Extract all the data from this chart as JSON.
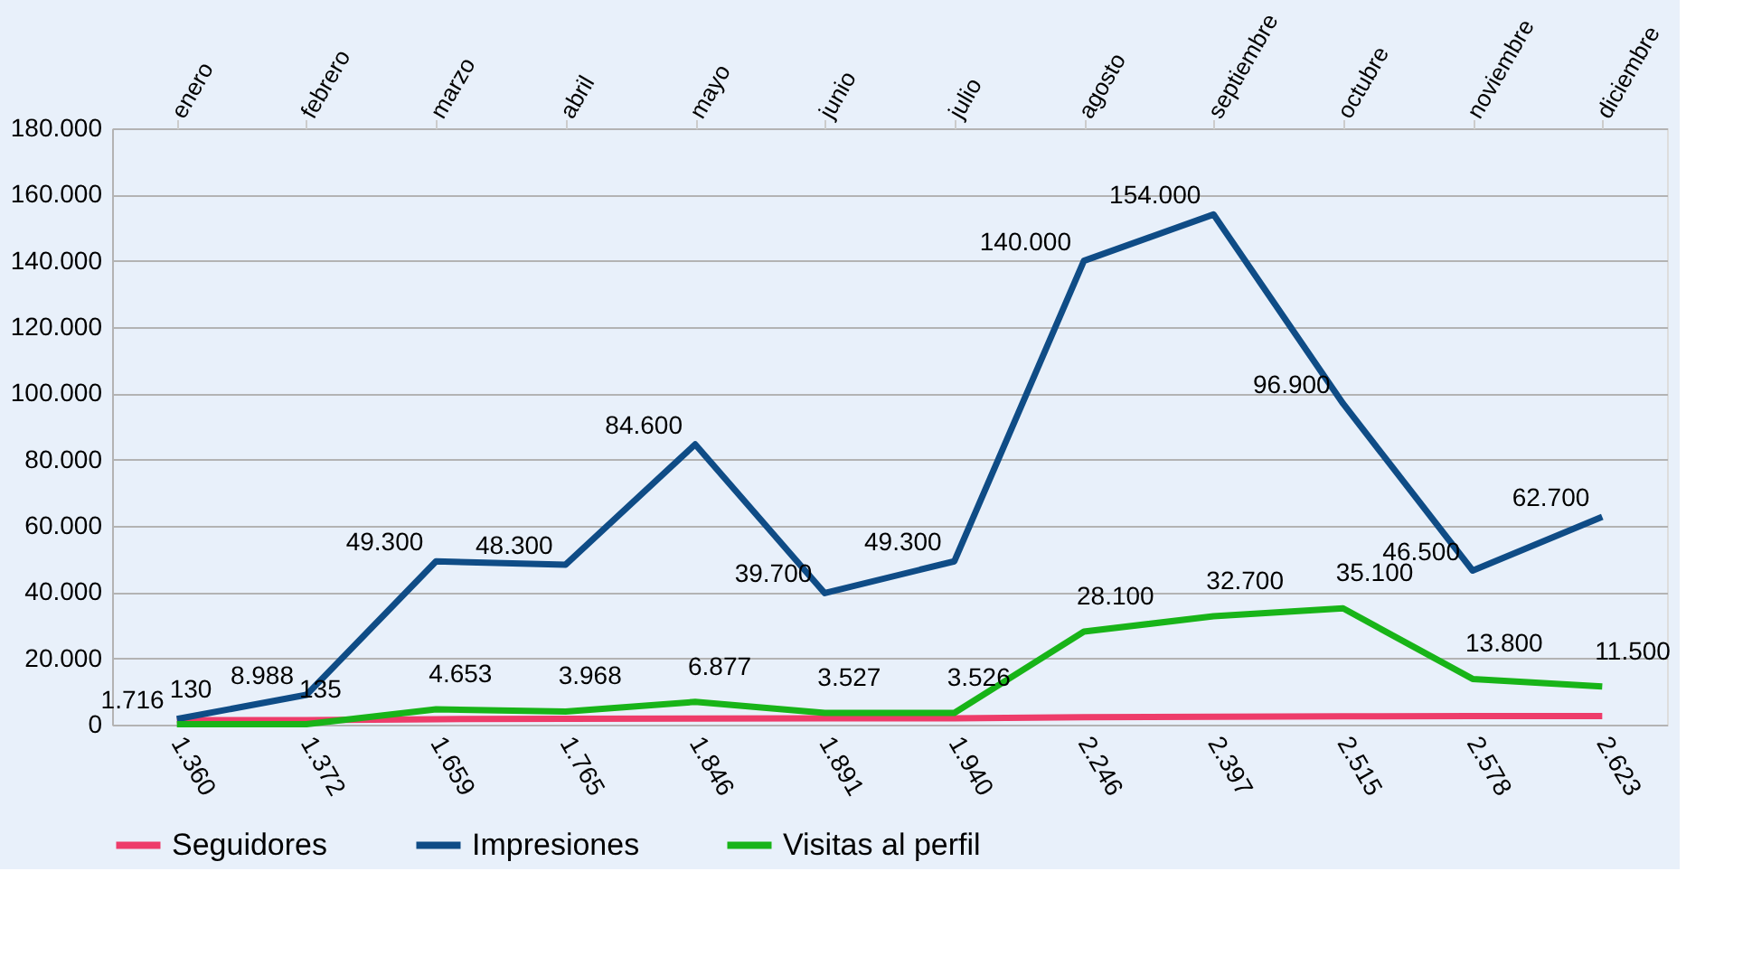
{
  "chart_data": {
    "type": "line",
    "categories": [
      "enero",
      "febrero",
      "marzo",
      "abril",
      "mayo",
      "junio",
      "julio",
      "agosto",
      "septiembre",
      "octubre",
      "noviembre",
      "diciembre"
    ],
    "series": [
      {
        "name": "Seguidores",
        "color": "#ee3c6a",
        "values": [
          1360,
          1372,
          1659,
          1765,
          1846,
          1891,
          1940,
          2246,
          2397,
          2515,
          2578,
          2623
        ],
        "value_labels": [
          "1.360",
          "1.372",
          "1.659",
          "1.765",
          "1.846",
          "1.891",
          "1.940",
          "2.246",
          "2.397",
          "2.515",
          "2.578",
          "2.623"
        ]
      },
      {
        "name": "Impresiones",
        "color": "#0f4c86",
        "values": [
          1716,
          8988,
          49300,
          48300,
          84600,
          39700,
          49300,
          140000,
          154000,
          96900,
          46500,
          62700
        ],
        "value_labels": [
          "1.716",
          "8.988",
          "49.300",
          "48.300",
          "84.600",
          "39.700",
          "49.300",
          "140.000",
          "154.000",
          "96.900",
          "46.500",
          "62.700"
        ]
      },
      {
        "name": "Visitas al perfil",
        "color": "#18b418",
        "values": [
          130,
          135,
          4653,
          3968,
          6877,
          3527,
          3526,
          28100,
          32700,
          35100,
          13800,
          11500
        ],
        "value_labels": [
          "130",
          "135",
          "4.653",
          "3.968",
          "6.877",
          "3.527",
          "3.526",
          "28.100",
          "32.700",
          "35.100",
          "13.800",
          "11.500"
        ]
      }
    ],
    "ylim": [
      0,
      180000
    ],
    "yticks": [
      {
        "value": 0,
        "label": "0"
      },
      {
        "value": 20000,
        "label": "20.000"
      },
      {
        "value": 40000,
        "label": "40.000"
      },
      {
        "value": 60000,
        "label": "60.000"
      },
      {
        "value": 80000,
        "label": "80.000"
      },
      {
        "value": 100000,
        "label": "100.000"
      },
      {
        "value": 120000,
        "label": "120.000"
      },
      {
        "value": 140000,
        "label": "140.000"
      },
      {
        "value": 160000,
        "label": "160.000"
      },
      {
        "value": 180000,
        "label": "180.000"
      }
    ],
    "grid": "y",
    "legend": "bottom",
    "line_style": "solid",
    "marker": "none"
  }
}
